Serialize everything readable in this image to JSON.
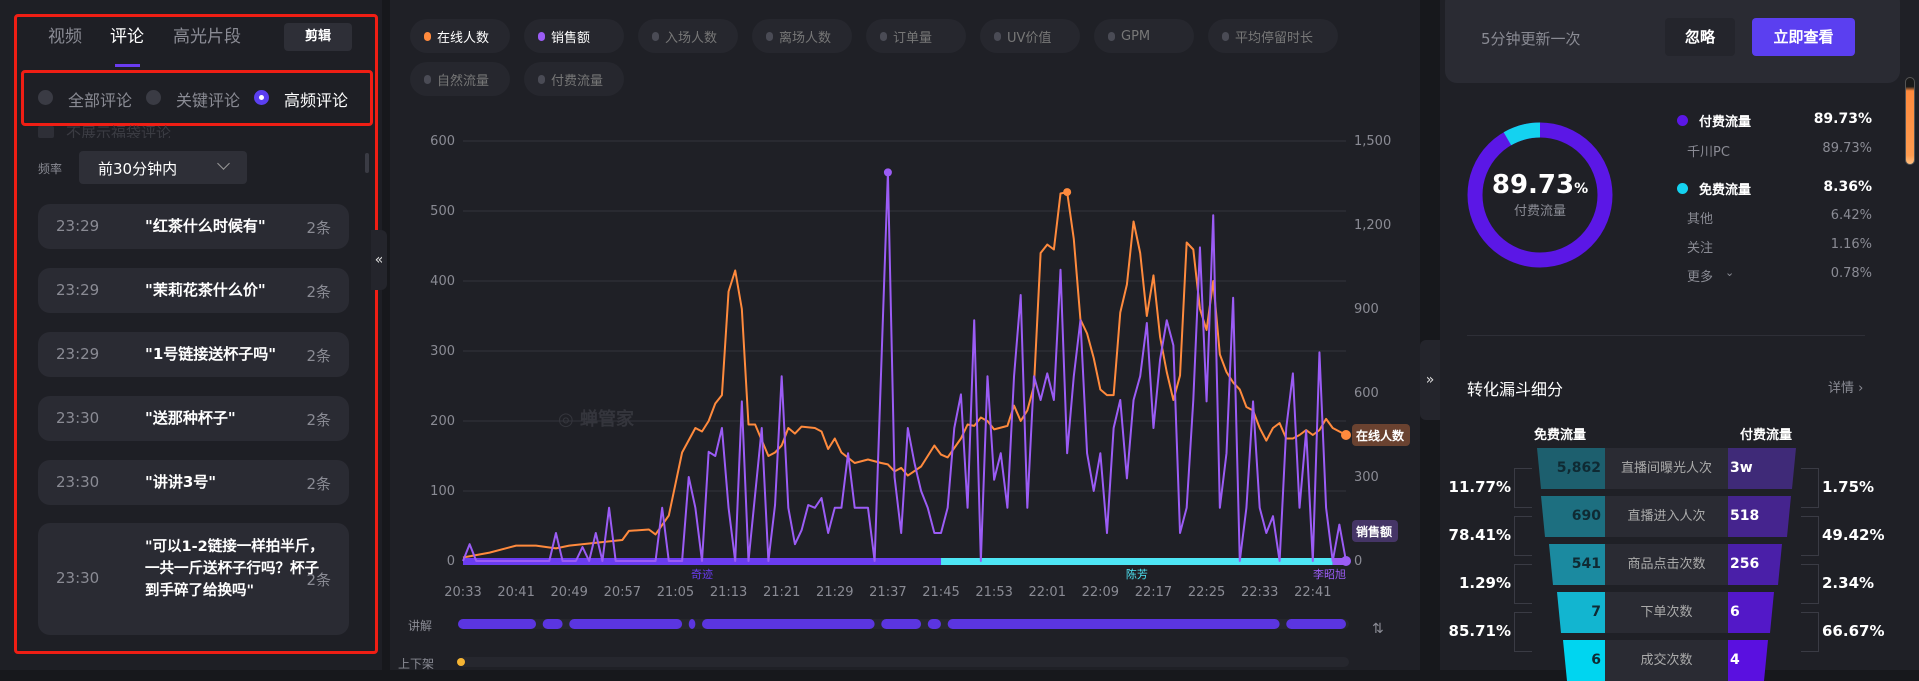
{
  "left_panel": {
    "tabs": [
      {
        "label": "视频"
      },
      {
        "label": "评论",
        "active": true
      },
      {
        "label": "高光片段"
      }
    ],
    "edit_button": "剪辑",
    "filters": [
      {
        "label": "全部评论",
        "selected": false
      },
      {
        "label": "关键评论",
        "selected": false
      },
      {
        "label": "高频评论",
        "selected": true
      }
    ],
    "hide_lucky_bag_label": "不展示福袋评论",
    "frequency_label": "频率",
    "frequency_value": "前30分钟内",
    "comments": [
      {
        "time": "23:29",
        "text": "\"红茶什么时候有\"",
        "count": "2条"
      },
      {
        "time": "23:29",
        "text": "\"茉莉花茶什么价\"",
        "count": "2条"
      },
      {
        "time": "23:29",
        "text": "\"1号链接送杯子吗\"",
        "count": "2条"
      },
      {
        "time": "23:30",
        "text": "\"送那种杯子\"",
        "count": "2条"
      },
      {
        "time": "23:30",
        "text": "\"讲讲3号\"",
        "count": "2条"
      },
      {
        "time": "23:30",
        "text": "\"可以1-2链接一样拍半斤，一共一斤送杯子行吗？杯子到手碎了给换吗\"",
        "count": "2条"
      }
    ]
  },
  "metrics": [
    {
      "label": "在线人数",
      "active": true,
      "color": "#ff8a3d"
    },
    {
      "label": "销售额",
      "active": true,
      "color": "#9b5cf5"
    },
    {
      "label": "入场人数",
      "active": false
    },
    {
      "label": "离场人数",
      "active": false
    },
    {
      "label": "订单量",
      "active": false
    },
    {
      "label": "UV价值",
      "active": false
    },
    {
      "label": "GPM",
      "active": false
    },
    {
      "label": "平均停留时长",
      "active": false
    },
    {
      "label": "自然流量",
      "active": false
    },
    {
      "label": "付费流量",
      "active": false
    }
  ],
  "chart_data": {
    "type": "line",
    "x_ticks": [
      "20:33",
      "20:41",
      "20:49",
      "20:57",
      "21:05",
      "21:13",
      "21:21",
      "21:29",
      "21:37",
      "21:45",
      "21:53",
      "22:01",
      "22:09",
      "22:17",
      "22:25",
      "22:33",
      "22:41"
    ],
    "x_range": [
      "20:33",
      "22:46"
    ],
    "y_left": {
      "range": [
        0,
        600
      ],
      "ticks": [
        0,
        100,
        200,
        300,
        400,
        500,
        600
      ]
    },
    "y_right": {
      "range": [
        0,
        1500
      ],
      "ticks": [
        0,
        300,
        600,
        900,
        "1,200",
        "1,500"
      ]
    },
    "grid": true,
    "series": [
      {
        "name": "在线人数",
        "axis": "left",
        "color": "#ff8a3d",
        "end_label": "在线人数",
        "peak": "22:04",
        "points": [
          [
            "20:33",
            5
          ],
          [
            "20:37",
            12
          ],
          [
            "20:41",
            22
          ],
          [
            "20:44",
            22
          ],
          [
            "20:47",
            18
          ],
          [
            "20:49",
            22
          ],
          [
            "20:52",
            25
          ],
          [
            "20:55",
            28
          ],
          [
            "20:57",
            30
          ],
          [
            "20:58",
            43
          ],
          [
            "21:01",
            45
          ],
          [
            "21:02",
            38
          ],
          [
            "21:04",
            65
          ],
          [
            "21:06",
            155
          ],
          [
            "21:08",
            190
          ],
          [
            "21:09",
            185
          ],
          [
            "21:10",
            200
          ],
          [
            "21:11",
            225
          ],
          [
            "21:12",
            237
          ],
          [
            "21:13",
            385
          ],
          [
            "21:14",
            415
          ],
          [
            "21:15",
            360
          ],
          [
            "21:16",
            195
          ],
          [
            "21:17",
            195
          ],
          [
            "21:19",
            150
          ],
          [
            "21:20",
            155
          ],
          [
            "21:21",
            165
          ],
          [
            "21:22",
            190
          ],
          [
            "21:23",
            182
          ],
          [
            "21:24",
            192
          ],
          [
            "21:26",
            190
          ],
          [
            "21:27",
            185
          ],
          [
            "21:28",
            160
          ],
          [
            "21:29",
            175
          ],
          [
            "21:30",
            155
          ],
          [
            "21:32",
            140
          ],
          [
            "21:34",
            145
          ],
          [
            "21:36",
            140
          ],
          [
            "21:37",
            138
          ],
          [
            "21:38",
            128
          ],
          [
            "21:39",
            133
          ],
          [
            "21:40",
            122
          ],
          [
            "21:42",
            135
          ],
          [
            "21:44",
            165
          ],
          [
            "21:45",
            152
          ],
          [
            "21:46",
            148
          ],
          [
            "21:48",
            175
          ],
          [
            "21:49",
            195
          ],
          [
            "21:50",
            193
          ],
          [
            "21:51",
            205
          ],
          [
            "21:52",
            200
          ],
          [
            "21:53",
            188
          ],
          [
            "21:55",
            193
          ],
          [
            "21:56",
            222
          ],
          [
            "21:57",
            200
          ],
          [
            "21:58",
            215
          ],
          [
            "21:59",
            250
          ],
          [
            "22:00",
            440
          ],
          [
            "22:01",
            452
          ],
          [
            "22:02",
            445
          ],
          [
            "22:03",
            525
          ],
          [
            "22:04",
            527
          ],
          [
            "22:05",
            460
          ],
          [
            "22:06",
            345
          ],
          [
            "22:07",
            325
          ],
          [
            "22:08",
            290
          ],
          [
            "22:09",
            245
          ],
          [
            "22:10",
            237
          ],
          [
            "22:11",
            237
          ],
          [
            "22:12",
            355
          ],
          [
            "22:13",
            395
          ],
          [
            "22:14",
            485
          ],
          [
            "22:15",
            440
          ],
          [
            "22:16",
            350
          ],
          [
            "22:17",
            408
          ],
          [
            "22:18",
            320
          ],
          [
            "22:19",
            270
          ],
          [
            "22:20",
            230
          ],
          [
            "22:21",
            265
          ],
          [
            "22:22",
            455
          ],
          [
            "22:23",
            445
          ],
          [
            "22:24",
            360
          ],
          [
            "22:25",
            330
          ],
          [
            "22:26",
            400
          ],
          [
            "22:27",
            295
          ],
          [
            "22:28",
            270
          ],
          [
            "22:29",
            255
          ],
          [
            "22:30",
            245
          ],
          [
            "22:31",
            220
          ],
          [
            "22:32",
            215
          ],
          [
            "22:33",
            190
          ],
          [
            "22:34",
            172
          ],
          [
            "22:35",
            190
          ],
          [
            "22:36",
            197
          ],
          [
            "22:37",
            175
          ],
          [
            "22:38",
            175
          ],
          [
            "22:39",
            180
          ],
          [
            "22:40",
            187
          ],
          [
            "22:41",
            180
          ],
          [
            "22:42",
            187
          ],
          [
            "22:43",
            203
          ],
          [
            "22:44",
            190
          ],
          [
            "22:46",
            180
          ]
        ]
      },
      {
        "name": "销售额",
        "axis": "right",
        "color": "#9b5cf5",
        "end_label": "销售额",
        "peak": "21:37",
        "points": [
          [
            "20:33",
            0
          ],
          [
            "20:34",
            60
          ],
          [
            "20:35",
            0
          ],
          [
            "20:46",
            0
          ],
          [
            "20:47",
            100
          ],
          [
            "20:48",
            0
          ],
          [
            "20:50",
            0
          ],
          [
            "20:51",
            50
          ],
          [
            "20:52",
            0
          ],
          [
            "20:53",
            100
          ],
          [
            "20:54",
            0
          ],
          [
            "20:55",
            190
          ],
          [
            "20:56",
            0
          ],
          [
            "21:02",
            0
          ],
          [
            "21:03",
            190
          ],
          [
            "21:04",
            0
          ],
          [
            "21:06",
            0
          ],
          [
            "21:07",
            300
          ],
          [
            "21:08",
            190
          ],
          [
            "21:09",
            0
          ],
          [
            "21:10",
            390
          ],
          [
            "21:11",
            375
          ],
          [
            "21:12",
            475
          ],
          [
            "21:13",
            190
          ],
          [
            "21:14",
            0
          ],
          [
            "21:15",
            570
          ],
          [
            "21:16",
            0
          ],
          [
            "21:18",
            475
          ],
          [
            "21:19",
            0
          ],
          [
            "21:20",
            200
          ],
          [
            "21:21",
            660
          ],
          [
            "21:22",
            190
          ],
          [
            "21:23",
            60
          ],
          [
            "21:24",
            110
          ],
          [
            "21:25",
            200
          ],
          [
            "21:26",
            190
          ],
          [
            "21:27",
            225
          ],
          [
            "21:28",
            100
          ],
          [
            "21:29",
            190
          ],
          [
            "21:30",
            190
          ],
          [
            "21:31",
            385
          ],
          [
            "21:32",
            190
          ],
          [
            "21:34",
            190
          ],
          [
            "21:35",
            0
          ],
          [
            "21:37",
            1388
          ],
          [
            "21:38",
            300
          ],
          [
            "21:39",
            100
          ],
          [
            "21:40",
            475
          ],
          [
            "21:41",
            350
          ],
          [
            "21:42",
            250
          ],
          [
            "21:43",
            190
          ],
          [
            "21:44",
            100
          ],
          [
            "21:45",
            100
          ],
          [
            "21:46",
            190
          ],
          [
            "21:47",
            475
          ],
          [
            "21:48",
            595
          ],
          [
            "21:49",
            190
          ],
          [
            "21:50",
            860
          ],
          [
            "21:51",
            0
          ],
          [
            "21:52",
            660
          ],
          [
            "21:53",
            290
          ],
          [
            "21:54",
            385
          ],
          [
            "21:55",
            190
          ],
          [
            "21:56",
            660
          ],
          [
            "21:57",
            950
          ],
          [
            "21:58",
            190
          ],
          [
            "21:59",
            660
          ],
          [
            "22:00",
            575
          ],
          [
            "22:01",
            670
          ],
          [
            "22:02",
            575
          ],
          [
            "22:03",
            1040
          ],
          [
            "22:04",
            385
          ],
          [
            "22:05",
            660
          ],
          [
            "22:06",
            860
          ],
          [
            "22:07",
            385
          ],
          [
            "22:08",
            250
          ],
          [
            "22:09",
            385
          ],
          [
            "22:10",
            100
          ],
          [
            "22:11",
            475
          ],
          [
            "22:12",
            575
          ],
          [
            "22:13",
            295
          ],
          [
            "22:14",
            575
          ],
          [
            "22:15",
            660
          ],
          [
            "22:16",
            850
          ],
          [
            "22:17",
            475
          ],
          [
            "22:18",
            720
          ],
          [
            "22:19",
            860
          ],
          [
            "22:20",
            770
          ],
          [
            "22:21",
            100
          ],
          [
            "22:22",
            190
          ],
          [
            "22:23",
            575
          ],
          [
            "22:24",
            1120
          ],
          [
            "22:25",
            570
          ],
          [
            "22:26",
            1235
          ],
          [
            "22:27",
            190
          ],
          [
            "22:28",
            385
          ],
          [
            "22:29",
            940
          ],
          [
            "22:30",
            0
          ],
          [
            "22:31",
            190
          ],
          [
            "22:32",
            570
          ],
          [
            "22:33",
            190
          ],
          [
            "22:34",
            100
          ],
          [
            "22:35",
            160
          ],
          [
            "22:36",
            0
          ],
          [
            "22:37",
            475
          ],
          [
            "22:38",
            670
          ],
          [
            "22:39",
            190
          ],
          [
            "22:40",
            465
          ],
          [
            "22:41",
            0
          ],
          [
            "22:42",
            745
          ],
          [
            "22:43",
            190
          ],
          [
            "22:44",
            0
          ],
          [
            "22:45",
            130
          ],
          [
            "22:46",
            0
          ]
        ]
      }
    ],
    "hosts": [
      {
        "name": "奇迹",
        "start": "20:33",
        "end": "21:45",
        "color": "#6a3cf0"
      },
      {
        "name": "陈芳",
        "start": "21:45",
        "end": "22:44",
        "color": "#4ee6f5"
      },
      {
        "name": "李昭旭",
        "start": "22:44",
        "end": "22:46",
        "color": "#9b5cf5"
      }
    ],
    "explain_label": "讲解",
    "explain_segments": [
      [
        "20:32",
        "20:44"
      ],
      [
        "20:45",
        "20:48"
      ],
      [
        "20:49",
        "21:06"
      ],
      [
        "21:07",
        "21:08"
      ],
      [
        "21:09",
        "21:35"
      ],
      [
        "21:36",
        "21:42"
      ],
      [
        "21:43",
        "21:45"
      ],
      [
        "21:46",
        "22:36"
      ],
      [
        "22:37",
        "22:46"
      ]
    ],
    "shelf_label": "上下架"
  },
  "notice": {
    "text": "5分钟更新一次",
    "ignore": "忽略",
    "view": "立即查看"
  },
  "traffic": {
    "center_value": "89.73",
    "center_unit": "%",
    "center_label": "付费流量",
    "paid_share": 89.73,
    "free_share": 8.36,
    "rows": [
      {
        "label": "付费流量",
        "value": "89.73%",
        "main": true,
        "color": "#5b17e6"
      },
      {
        "label": "千川PC",
        "value": "89.73%"
      },
      {
        "label": "免费流量",
        "value": "8.36%",
        "main": true,
        "color": "#14d2f0"
      },
      {
        "label": "其他",
        "value": "6.42%"
      },
      {
        "label": "关注",
        "value": "1.16%"
      },
      {
        "label": "更多",
        "value": "0.78%",
        "expand": true
      }
    ]
  },
  "funnel": {
    "title": "转化漏斗细分",
    "detail": "详情",
    "free_header": "免费流量",
    "paid_header": "付费流量",
    "rows": [
      {
        "label": "直播间曝光人次",
        "free": "5,862",
        "paid": "3w"
      },
      {
        "label": "直播进入人次",
        "free": "690",
        "paid": "518"
      },
      {
        "label": "商品点击次数",
        "free": "541",
        "paid": "256"
      },
      {
        "label": "下单次数",
        "free": "7",
        "paid": "6"
      },
      {
        "label": "成交次数",
        "free": "6",
        "paid": "4"
      }
    ],
    "free_rates": [
      "11.77%",
      "78.41%",
      "1.29%",
      "85.71%"
    ],
    "paid_rates": [
      "1.75%",
      "49.42%",
      "2.34%",
      "66.67%"
    ]
  },
  "watermark": "蝉管家"
}
